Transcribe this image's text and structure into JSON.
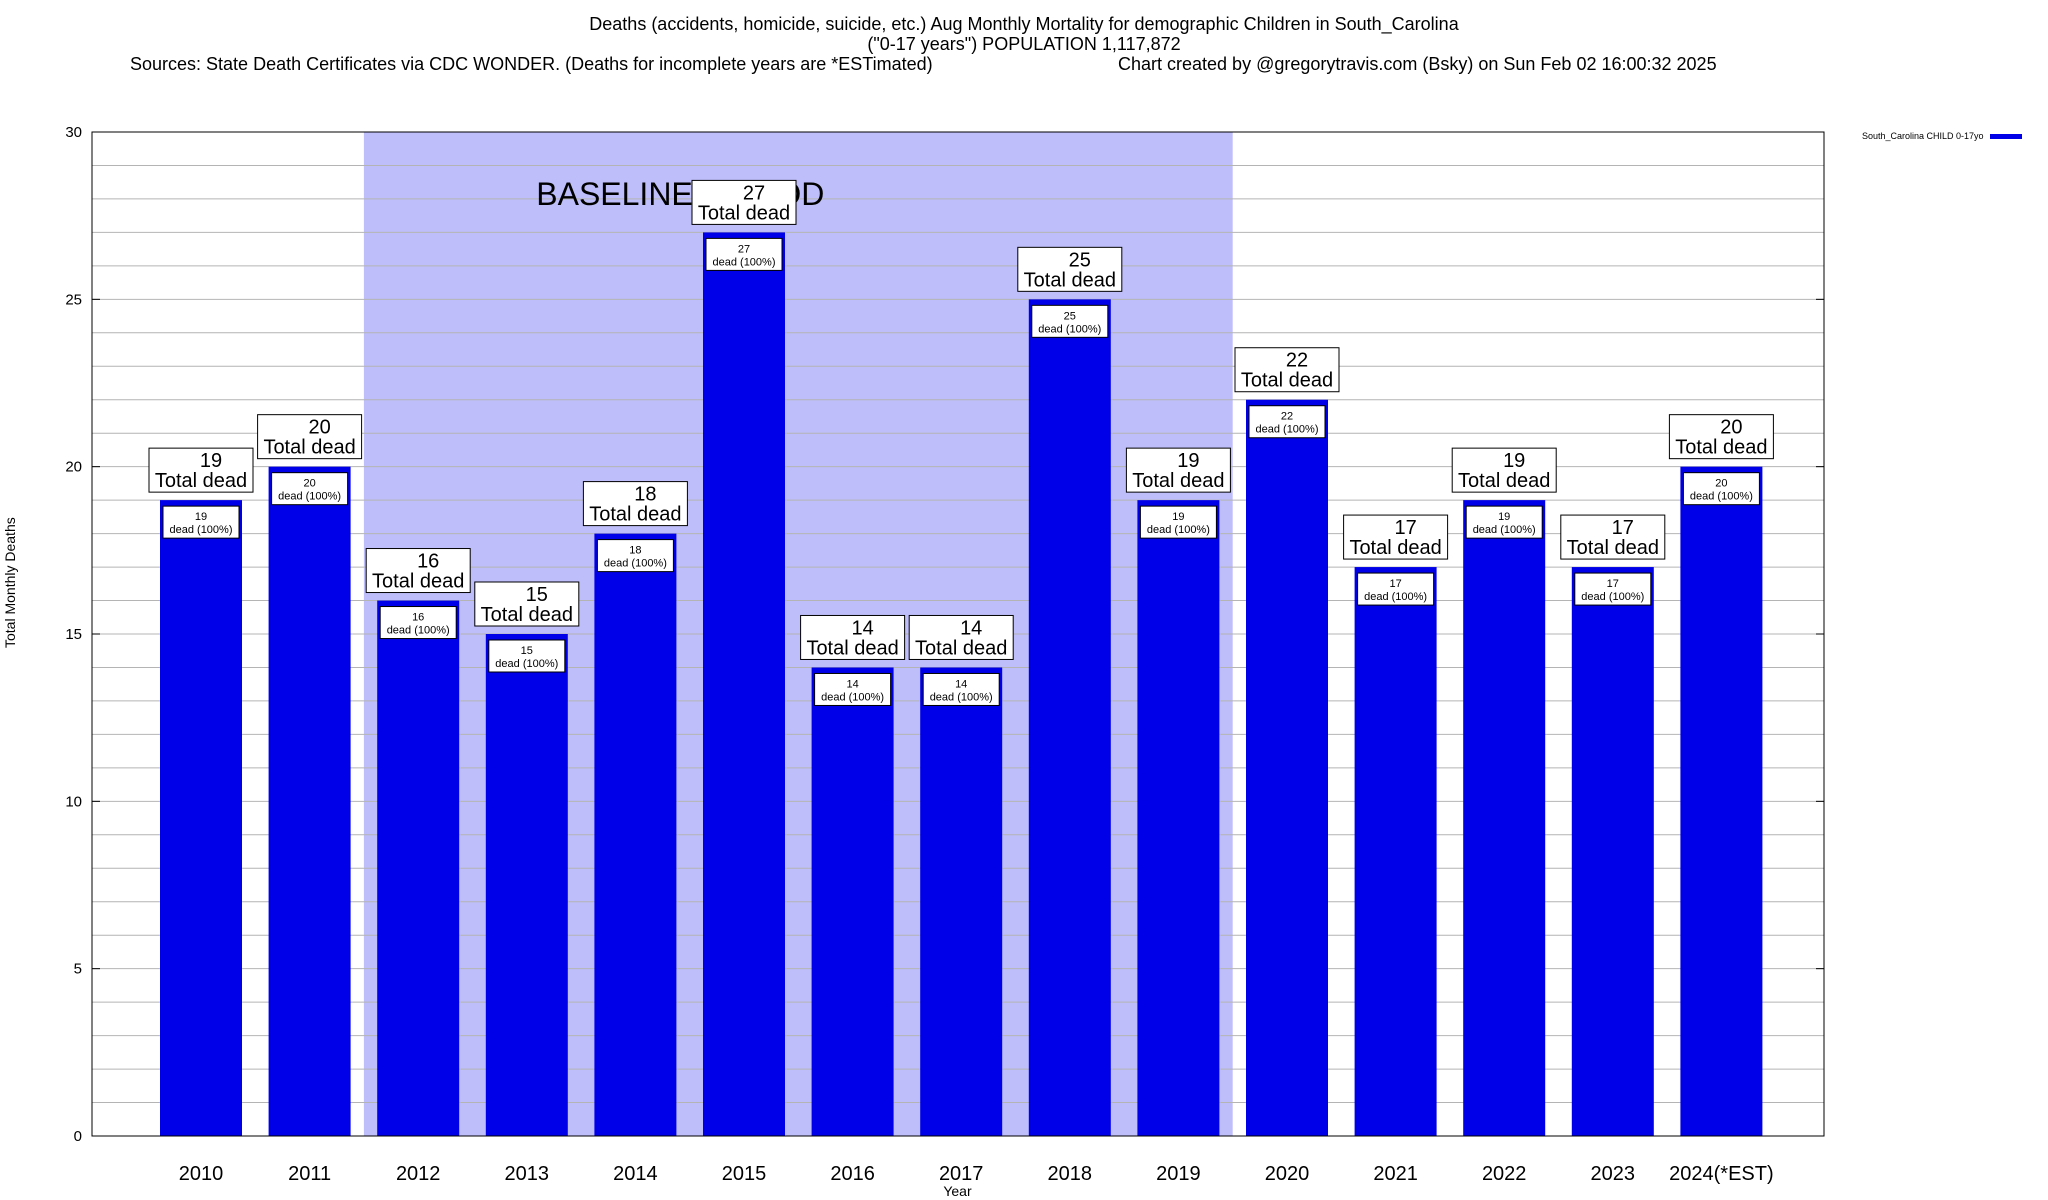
{
  "header": {
    "title_line1": "Deaths (accidents, homicide, suicide, etc.) Aug Monthly Mortality for demographic Children in South_Carolina",
    "title_line2": "(\"0-17 years\") POPULATION 1,117,872",
    "title_line3_sources": "Sources: State Death Certificates via CDC WONDER. (Deaths for incomplete years are *ESTimated)",
    "title_line3_credit": "Chart created by @gregorytravis.com (Bsky) on Sun Feb 02 16:00:32 2025"
  },
  "chart_data": {
    "type": "bar",
    "title": "Deaths (accidents, homicide, suicide, etc.) Aug Monthly Mortality for demographic Children in South_Carolina",
    "xlabel": "Year",
    "ylabel": "Total Monthly Deaths",
    "ylim": [
      0,
      30
    ],
    "yticks": [
      0,
      5,
      10,
      15,
      20,
      25,
      30
    ],
    "grid": true,
    "legend_position": "top-right",
    "categories": [
      "2010",
      "2011",
      "2012",
      "2013",
      "2014",
      "2015",
      "2016",
      "2017",
      "2018",
      "2019",
      "2020",
      "2021",
      "2022",
      "2023",
      "2024(*EST)"
    ],
    "series": [
      {
        "name": "South_Carolina CHILD 0-17yo",
        "values": [
          19,
          20,
          16,
          15,
          18,
          27,
          14,
          14,
          25,
          19,
          22,
          17,
          19,
          17,
          20
        ]
      }
    ],
    "annotations": {
      "baseline_label": "BASELINE PERIOD",
      "baseline_range": [
        "2012",
        "2019"
      ],
      "total_label_suffix": "Total dead",
      "inner_label_suffix": "dead (100%)"
    }
  },
  "colors": {
    "bar": "#0000e8",
    "baseline_shade": "#bebefa",
    "grid": "#b4b4b4"
  }
}
